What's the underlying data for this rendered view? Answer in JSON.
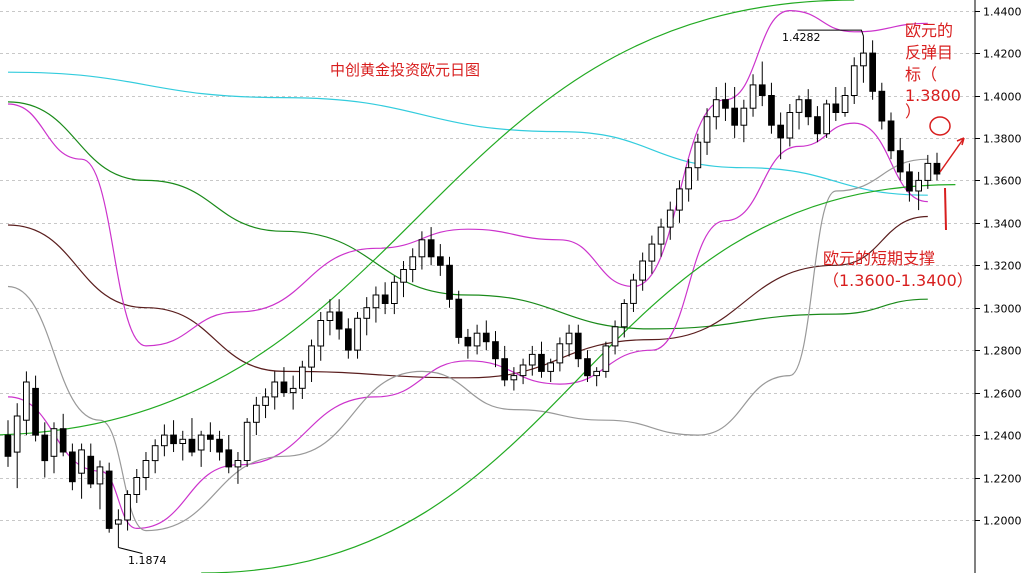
{
  "chart_data": {
    "type": "candlestick",
    "title": "中创黄金投资欧元日图",
    "xlabel": "",
    "ylabel": "",
    "ylim": [
      1.175,
      1.445
    ],
    "yticks": [
      "1.4400",
      "1.4200",
      "1.4000",
      "1.3800",
      "1.3600",
      "1.3400",
      "1.3200",
      "1.3000",
      "1.2800",
      "1.2600",
      "1.2400",
      "1.2200",
      "1.2000"
    ],
    "y_tick_values": [
      1.44,
      1.42,
      1.4,
      1.38,
      1.36,
      1.34,
      1.32,
      1.3,
      1.28,
      1.26,
      1.24,
      1.22,
      1.2
    ],
    "grid": true,
    "colors": {
      "background": "#ffffff",
      "bull_candle": "#ffffff",
      "bear_candle": "#000000",
      "candle_outline": "#000000",
      "long_ma": "#33ccdd",
      "mid_ma": "#1a8a1a",
      "slow_ma": "#5a1e1e",
      "bollinger": "#cc33cc",
      "envelope": "#999999",
      "trend_channel": "#22aa22",
      "annotation": "#d81e1e"
    },
    "labels": {
      "high_marker": "1.4282",
      "low_marker": "1.1874"
    },
    "annotations": {
      "target": [
        "欧元的",
        "反弹目",
        "标（",
        "1.3800",
        "）"
      ],
      "support": [
        "欧元的短期支撑",
        "（1.3600-1.3400）"
      ]
    },
    "series": [
      {
        "kind": "candles",
        "values": [
          [
            1.24,
            1.247,
            1.225,
            1.23
          ],
          [
            1.232,
            1.255,
            1.215,
            1.249
          ],
          [
            1.247,
            1.27,
            1.24,
            1.265
          ],
          [
            1.262,
            1.268,
            1.237,
            1.24
          ],
          [
            1.24,
            1.246,
            1.22,
            1.228
          ],
          [
            1.23,
            1.246,
            1.222,
            1.243
          ],
          [
            1.243,
            1.25,
            1.23,
            1.232
          ],
          [
            1.232,
            1.236,
            1.214,
            1.218
          ],
          [
            1.222,
            1.236,
            1.21,
            1.233
          ],
          [
            1.23,
            1.236,
            1.215,
            1.217
          ],
          [
            1.217,
            1.228,
            1.205,
            1.225
          ],
          [
            1.223,
            1.227,
            1.194,
            1.196
          ],
          [
            1.198,
            1.205,
            1.187,
            1.2
          ],
          [
            1.2,
            1.214,
            1.195,
            1.212
          ],
          [
            1.212,
            1.224,
            1.208,
            1.22
          ],
          [
            1.22,
            1.232,
            1.214,
            1.228
          ],
          [
            1.228,
            1.238,
            1.222,
            1.235
          ],
          [
            1.235,
            1.245,
            1.23,
            1.24
          ],
          [
            1.24,
            1.247,
            1.232,
            1.236
          ],
          [
            1.236,
            1.242,
            1.228,
            1.238
          ],
          [
            1.238,
            1.248,
            1.23,
            1.232
          ],
          [
            1.233,
            1.242,
            1.225,
            1.24
          ],
          [
            1.24,
            1.246,
            1.232,
            1.238
          ],
          [
            1.238,
            1.242,
            1.228,
            1.232
          ],
          [
            1.233,
            1.24,
            1.222,
            1.225
          ],
          [
            1.225,
            1.232,
            1.217,
            1.228
          ],
          [
            1.228,
            1.248,
            1.225,
            1.246
          ],
          [
            1.246,
            1.258,
            1.24,
            1.254
          ],
          [
            1.254,
            1.262,
            1.248,
            1.258
          ],
          [
            1.258,
            1.27,
            1.252,
            1.265
          ],
          [
            1.265,
            1.272,
            1.258,
            1.26
          ],
          [
            1.26,
            1.268,
            1.252,
            1.262
          ],
          [
            1.262,
            1.275,
            1.257,
            1.272
          ],
          [
            1.272,
            1.285,
            1.265,
            1.282
          ],
          [
            1.282,
            1.298,
            1.275,
            1.294
          ],
          [
            1.294,
            1.304,
            1.287,
            1.298
          ],
          [
            1.298,
            1.304,
            1.285,
            1.29
          ],
          [
            1.29,
            1.295,
            1.276,
            1.28
          ],
          [
            1.28,
            1.298,
            1.276,
            1.295
          ],
          [
            1.295,
            1.305,
            1.287,
            1.3
          ],
          [
            1.3,
            1.31,
            1.293,
            1.306
          ],
          [
            1.306,
            1.312,
            1.297,
            1.302
          ],
          [
            1.302,
            1.315,
            1.297,
            1.312
          ],
          [
            1.312,
            1.322,
            1.305,
            1.318
          ],
          [
            1.318,
            1.328,
            1.312,
            1.324
          ],
          [
            1.324,
            1.336,
            1.318,
            1.332
          ],
          [
            1.332,
            1.338,
            1.32,
            1.324
          ],
          [
            1.324,
            1.33,
            1.315,
            1.32
          ],
          [
            1.32,
            1.324,
            1.3,
            1.304
          ],
          [
            1.304,
            1.308,
            1.283,
            1.286
          ],
          [
            1.286,
            1.29,
            1.276,
            1.282
          ],
          [
            1.282,
            1.292,
            1.278,
            1.288
          ],
          [
            1.288,
            1.294,
            1.28,
            1.284
          ],
          [
            1.284,
            1.289,
            1.272,
            1.276
          ],
          [
            1.276,
            1.282,
            1.263,
            1.266
          ],
          [
            1.266,
            1.272,
            1.261,
            1.268
          ],
          [
            1.268,
            1.276,
            1.264,
            1.273
          ],
          [
            1.273,
            1.282,
            1.268,
            1.278
          ],
          [
            1.278,
            1.284,
            1.267,
            1.27
          ],
          [
            1.27,
            1.276,
            1.265,
            1.274
          ],
          [
            1.274,
            1.286,
            1.27,
            1.283
          ],
          [
            1.283,
            1.292,
            1.277,
            1.288
          ],
          [
            1.288,
            1.292,
            1.272,
            1.276
          ],
          [
            1.276,
            1.28,
            1.265,
            1.268
          ],
          [
            1.268,
            1.272,
            1.263,
            1.27
          ],
          [
            1.27,
            1.284,
            1.267,
            1.282
          ],
          [
            1.282,
            1.294,
            1.278,
            1.291
          ],
          [
            1.291,
            1.304,
            1.286,
            1.302
          ],
          [
            1.302,
            1.316,
            1.298,
            1.313
          ],
          [
            1.313,
            1.326,
            1.308,
            1.322
          ],
          [
            1.322,
            1.334,
            1.316,
            1.33
          ],
          [
            1.33,
            1.342,
            1.324,
            1.338
          ],
          [
            1.338,
            1.35,
            1.332,
            1.346
          ],
          [
            1.346,
            1.36,
            1.34,
            1.356
          ],
          [
            1.356,
            1.37,
            1.35,
            1.366
          ],
          [
            1.366,
            1.382,
            1.36,
            1.378
          ],
          [
            1.378,
            1.394,
            1.372,
            1.39
          ],
          [
            1.39,
            1.404,
            1.384,
            1.398
          ],
          [
            1.398,
            1.406,
            1.388,
            1.394
          ],
          [
            1.394,
            1.404,
            1.38,
            1.386
          ],
          [
            1.386,
            1.398,
            1.378,
            1.394
          ],
          [
            1.394,
            1.41,
            1.39,
            1.405
          ],
          [
            1.405,
            1.416,
            1.395,
            1.4
          ],
          [
            1.4,
            1.406,
            1.382,
            1.386
          ],
          [
            1.386,
            1.392,
            1.37,
            1.38
          ],
          [
            1.38,
            1.396,
            1.376,
            1.392
          ],
          [
            1.392,
            1.4,
            1.384,
            1.398
          ],
          [
            1.398,
            1.403,
            1.386,
            1.39
          ],
          [
            1.39,
            1.395,
            1.378,
            1.382
          ],
          [
            1.382,
            1.398,
            1.38,
            1.396
          ],
          [
            1.396,
            1.404,
            1.388,
            1.392
          ],
          [
            1.392,
            1.404,
            1.39,
            1.4
          ],
          [
            1.4,
            1.418,
            1.396,
            1.414
          ],
          [
            1.414,
            1.428,
            1.406,
            1.42
          ],
          [
            1.42,
            1.426,
            1.398,
            1.402
          ],
          [
            1.402,
            1.406,
            1.384,
            1.388
          ],
          [
            1.388,
            1.392,
            1.37,
            1.374
          ],
          [
            1.374,
            1.38,
            1.36,
            1.364
          ],
          [
            1.364,
            1.368,
            1.35,
            1.355
          ],
          [
            1.355,
            1.364,
            1.346,
            1.36
          ],
          [
            1.36,
            1.372,
            1.356,
            1.368
          ],
          [
            1.368,
            1.373,
            1.36,
            1.363
          ]
        ]
      },
      {
        "name": "",
        "kind": "line",
        "color": "long_ma",
        "points": [
          [
            0,
            1.411
          ],
          [
            30,
            1.399
          ],
          [
            60,
            1.383
          ],
          [
            80,
            1.366
          ],
          [
            100,
            1.353
          ]
        ]
      },
      {
        "name": "",
        "kind": "line",
        "color": "mid_ma",
        "points": [
          [
            0,
            1.397
          ],
          [
            15,
            1.36
          ],
          [
            30,
            1.336
          ],
          [
            50,
            1.306
          ],
          [
            70,
            1.29
          ],
          [
            90,
            1.297
          ],
          [
            100,
            1.304
          ]
        ]
      },
      {
        "name": "",
        "kind": "line",
        "color": "slow_ma",
        "points": [
          [
            0,
            1.339
          ],
          [
            15,
            1.3
          ],
          [
            30,
            1.27
          ],
          [
            50,
            1.267
          ],
          [
            70,
            1.285
          ],
          [
            90,
            1.32
          ],
          [
            100,
            1.343
          ]
        ]
      },
      {
        "name": "",
        "kind": "line",
        "color": "bollinger",
        "points": [
          [
            0,
            1.396
          ],
          [
            8,
            1.37
          ],
          [
            15,
            1.282
          ],
          [
            25,
            1.298
          ],
          [
            40,
            1.328
          ],
          [
            50,
            1.337
          ],
          [
            60,
            1.332
          ],
          [
            68,
            1.31
          ],
          [
            78,
            1.398
          ],
          [
            85,
            1.44
          ],
          [
            92,
            1.43
          ],
          [
            100,
            1.434
          ]
        ]
      },
      {
        "name": "",
        "kind": "line",
        "color": "bollinger",
        "points": [
          [
            0,
            1.258
          ],
          [
            10,
            1.223
          ],
          [
            14,
            1.196
          ],
          [
            25,
            1.226
          ],
          [
            40,
            1.258
          ],
          [
            50,
            1.275
          ],
          [
            60,
            1.264
          ],
          [
            70,
            1.28
          ],
          [
            78,
            1.341
          ],
          [
            86,
            1.376
          ],
          [
            92,
            1.387
          ],
          [
            100,
            1.35
          ]
        ]
      },
      {
        "name": "",
        "kind": "line",
        "color": "envelope",
        "points": [
          [
            0,
            1.31
          ],
          [
            10,
            1.247
          ],
          [
            15,
            1.195
          ],
          [
            30,
            1.23
          ],
          [
            45,
            1.27
          ],
          [
            55,
            1.252
          ],
          [
            65,
            1.247
          ],
          [
            75,
            1.24
          ],
          [
            85,
            1.268
          ],
          [
            90,
            1.355
          ],
          [
            100,
            1.37
          ]
        ]
      },
      {
        "name": "",
        "kind": "line",
        "color": "trend_channel",
        "points": [
          [
            -3,
            1.24
          ],
          [
            92,
            1.445
          ]
        ]
      },
      {
        "name": "",
        "kind": "line",
        "color": "trend_channel",
        "points": [
          [
            21,
            1.175
          ],
          [
            103,
            1.358
          ]
        ]
      }
    ]
  }
}
